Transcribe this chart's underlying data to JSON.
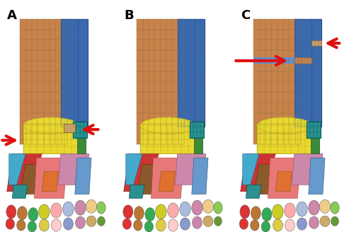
{
  "fig_width": 5.0,
  "fig_height": 3.28,
  "dpi": 100,
  "background_color": "#ffffff",
  "panel_labels": [
    "A",
    "B",
    "C"
  ],
  "label_fontsize": 13,
  "label_fontweight": "bold",
  "label_color": "#000000",
  "red_arrow_color": "#dd1111",
  "skin_color": "#c8834a",
  "skin_dark": "#a06030",
  "tibia_blue": "#3a6aad",
  "tibia_blue_dark": "#2a5090",
  "tibia_blue_light": "#6090cc",
  "yellow_bone": "#e8d830",
  "yellow_bone_dark": "#c8b820",
  "teal_color": "#2a9090",
  "green_color": "#3a8a3a",
  "pink_color": "#e87878",
  "tan_color": "#c8a060",
  "red_color": "#cc3333",
  "orange_color": "#e07030",
  "brown_color": "#8b5a2b",
  "blue_light": "#6699cc",
  "mauve_color": "#cc88aa",
  "purple_color": "#9988bb",
  "cyan_color": "#44aacc",
  "lime_color": "#88cc44",
  "grid_color": "#88775533",
  "grid_color_blue": "#5577aa44"
}
